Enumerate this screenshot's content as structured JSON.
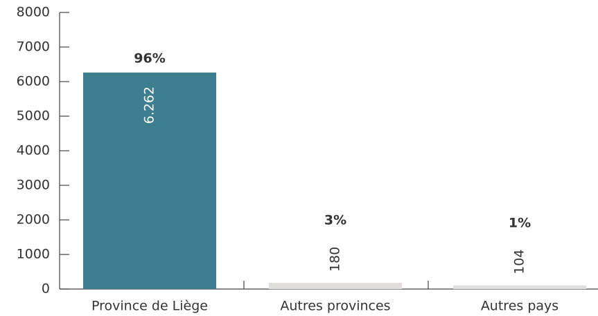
{
  "chart_data": {
    "type": "bar",
    "categories": [
      "Province de Liège",
      "Autres provinces",
      "Autres pays"
    ],
    "values": [
      6262,
      180,
      104
    ],
    "value_labels": [
      "6.262",
      "180",
      "104"
    ],
    "percent_labels": [
      "96%",
      "3%",
      "1%"
    ],
    "colors": [
      "#3d7f8e",
      "#e2dede",
      "#e2dede"
    ],
    "ylim": [
      0,
      8000
    ],
    "yticks": [
      0,
      1000,
      2000,
      3000,
      4000,
      5000,
      6000,
      7000,
      8000
    ]
  }
}
